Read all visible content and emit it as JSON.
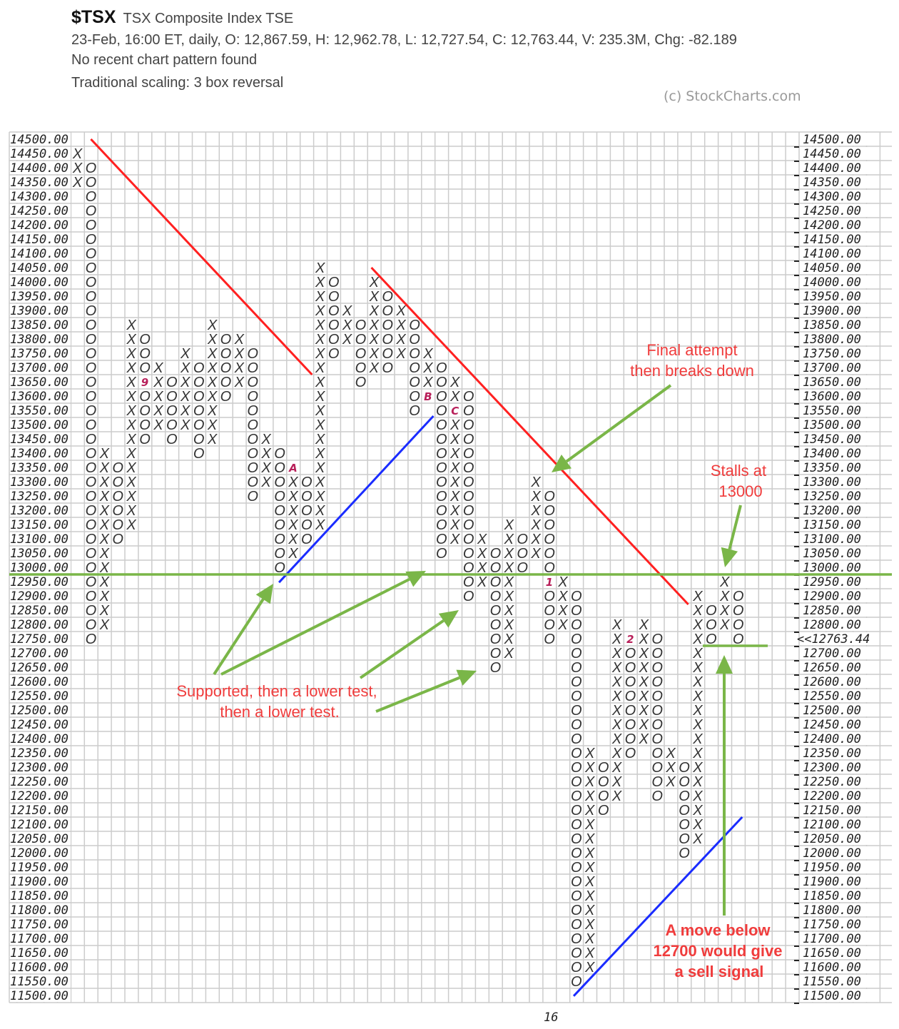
{
  "header": {
    "symbol": "$TSX",
    "name": "TSX Composite Index  TSE",
    "quote_line": "23-Feb, 16:00 ET, daily, O: 12,867.59, H: 12,962.78, L: 12,727.54, C: 12,763.44, V: 235.3M, Chg: -82.189",
    "pattern_line": "No recent chart pattern found",
    "scaling_line": "Traditional scaling: 3 box reversal"
  },
  "watermark": "(c) StockCharts.com",
  "chart_data": {
    "type": "point_and_figure",
    "box_size": 50,
    "reversal": 3,
    "ylim": [
      11500,
      14500
    ],
    "grid": true,
    "current_price_label": "<<12763.44",
    "current_price_row": 12750,
    "colors": {
      "x": "#333333",
      "o": "#333333",
      "last_column": "#ff3333",
      "month_marker": "#b8205a",
      "resistance": "#ff2020",
      "support": "#1a2cff",
      "annotation": "#f03c3c",
      "arrow": "#7ab648",
      "grid": "#cccccc"
    },
    "x_labels": [
      {
        "column": 35,
        "label": "16"
      }
    ],
    "columns": [
      {
        "type": "X",
        "low": 14350,
        "high": 14450
      },
      {
        "type": "O",
        "low": 12750,
        "high": 14400
      },
      {
        "type": "X",
        "low": 12800,
        "high": 13400
      },
      {
        "type": "O",
        "low": 13100,
        "high": 13350
      },
      {
        "type": "X",
        "low": 13150,
        "high": 13850
      },
      {
        "type": "O",
        "low": 13450,
        "high": 13800,
        "markers": {
          "13650": "9"
        }
      },
      {
        "type": "X",
        "low": 13500,
        "high": 13700
      },
      {
        "type": "O",
        "low": 13450,
        "high": 13650
      },
      {
        "type": "X",
        "low": 13500,
        "high": 13750
      },
      {
        "type": "O",
        "low": 13400,
        "high": 13700
      },
      {
        "type": "X",
        "low": 13450,
        "high": 13850
      },
      {
        "type": "O",
        "low": 13600,
        "high": 13800
      },
      {
        "type": "X",
        "low": 13650,
        "high": 13800
      },
      {
        "type": "O",
        "low": 13250,
        "high": 13750
      },
      {
        "type": "X",
        "low": 13300,
        "high": 13450
      },
      {
        "type": "O",
        "low": 13000,
        "high": 13400
      },
      {
        "type": "X",
        "low": 13050,
        "high": 13350,
        "markers": {
          "13350": "A"
        }
      },
      {
        "type": "O",
        "low": 13100,
        "high": 13300
      },
      {
        "type": "X",
        "low": 13150,
        "high": 14050
      },
      {
        "type": "O",
        "low": 13750,
        "high": 14000
      },
      {
        "type": "X",
        "low": 13800,
        "high": 13900
      },
      {
        "type": "O",
        "low": 13650,
        "high": 13850
      },
      {
        "type": "X",
        "low": 13700,
        "high": 14000
      },
      {
        "type": "O",
        "low": 13700,
        "high": 13950
      },
      {
        "type": "X",
        "low": 13750,
        "high": 13900
      },
      {
        "type": "O",
        "low": 13550,
        "high": 13850
      },
      {
        "type": "X",
        "low": 13600,
        "high": 13750,
        "markers": {
          "13600": "B"
        }
      },
      {
        "type": "O",
        "low": 13050,
        "high": 13700
      },
      {
        "type": "X",
        "low": 13100,
        "high": 13650,
        "markers": {
          "13550": "C"
        }
      },
      {
        "type": "O",
        "low": 12900,
        "high": 13600
      },
      {
        "type": "X",
        "low": 12950,
        "high": 13100
      },
      {
        "type": "O",
        "low": 12650,
        "high": 13050
      },
      {
        "type": "X",
        "low": 12700,
        "high": 13150
      },
      {
        "type": "O",
        "low": 13000,
        "high": 13100
      },
      {
        "type": "X",
        "low": 13050,
        "high": 13300
      },
      {
        "type": "O",
        "low": 12750,
        "high": 13250,
        "markers": {
          "12950": "1"
        }
      },
      {
        "type": "X",
        "low": 12800,
        "high": 12950
      },
      {
        "type": "O",
        "low": 11550,
        "high": 12900
      },
      {
        "type": "X",
        "low": 11600,
        "high": 12350
      },
      {
        "type": "O",
        "low": 12150,
        "high": 12300
      },
      {
        "type": "X",
        "low": 12200,
        "high": 12800
      },
      {
        "type": "O",
        "low": 12350,
        "high": 12750,
        "markers": {
          "12750": "2"
        }
      },
      {
        "type": "X",
        "low": 12400,
        "high": 12800
      },
      {
        "type": "O",
        "low": 12200,
        "high": 12750
      },
      {
        "type": "X",
        "low": 12250,
        "high": 12350
      },
      {
        "type": "O",
        "low": 12000,
        "high": 12300
      },
      {
        "type": "X",
        "low": 12050,
        "high": 12900
      },
      {
        "type": "O",
        "low": 12750,
        "high": 12850
      },
      {
        "type": "X",
        "low": 12800,
        "high": 12950
      },
      {
        "type": "O",
        "low": 12750,
        "high": 12900,
        "current": true
      }
    ],
    "trendlines": [
      {
        "kind": "resistance",
        "from": [
          1.0,
          14500
        ],
        "to": [
          17.4,
          13675
        ]
      },
      {
        "kind": "resistance",
        "from": [
          21.8,
          14050
        ],
        "to": [
          45.3,
          12870
        ]
      },
      {
        "kind": "support",
        "from": [
          14.95,
          12947
        ],
        "to": [
          26.4,
          13530
        ]
      },
      {
        "kind": "support",
        "from": [
          36.8,
          11498
        ],
        "to": [
          49.3,
          12125
        ]
      }
    ],
    "horizontal_levels": [
      12975,
      12725
    ],
    "annotations": {
      "final": [
        "Final attempt",
        "then breaks down"
      ],
      "stalls": [
        "Stalls at",
        "13000"
      ],
      "supported": [
        "Supported, then a lower test,",
        "then a lower test."
      ],
      "sell": [
        "A move below",
        "12700 would give",
        "a sell signal"
      ]
    }
  }
}
